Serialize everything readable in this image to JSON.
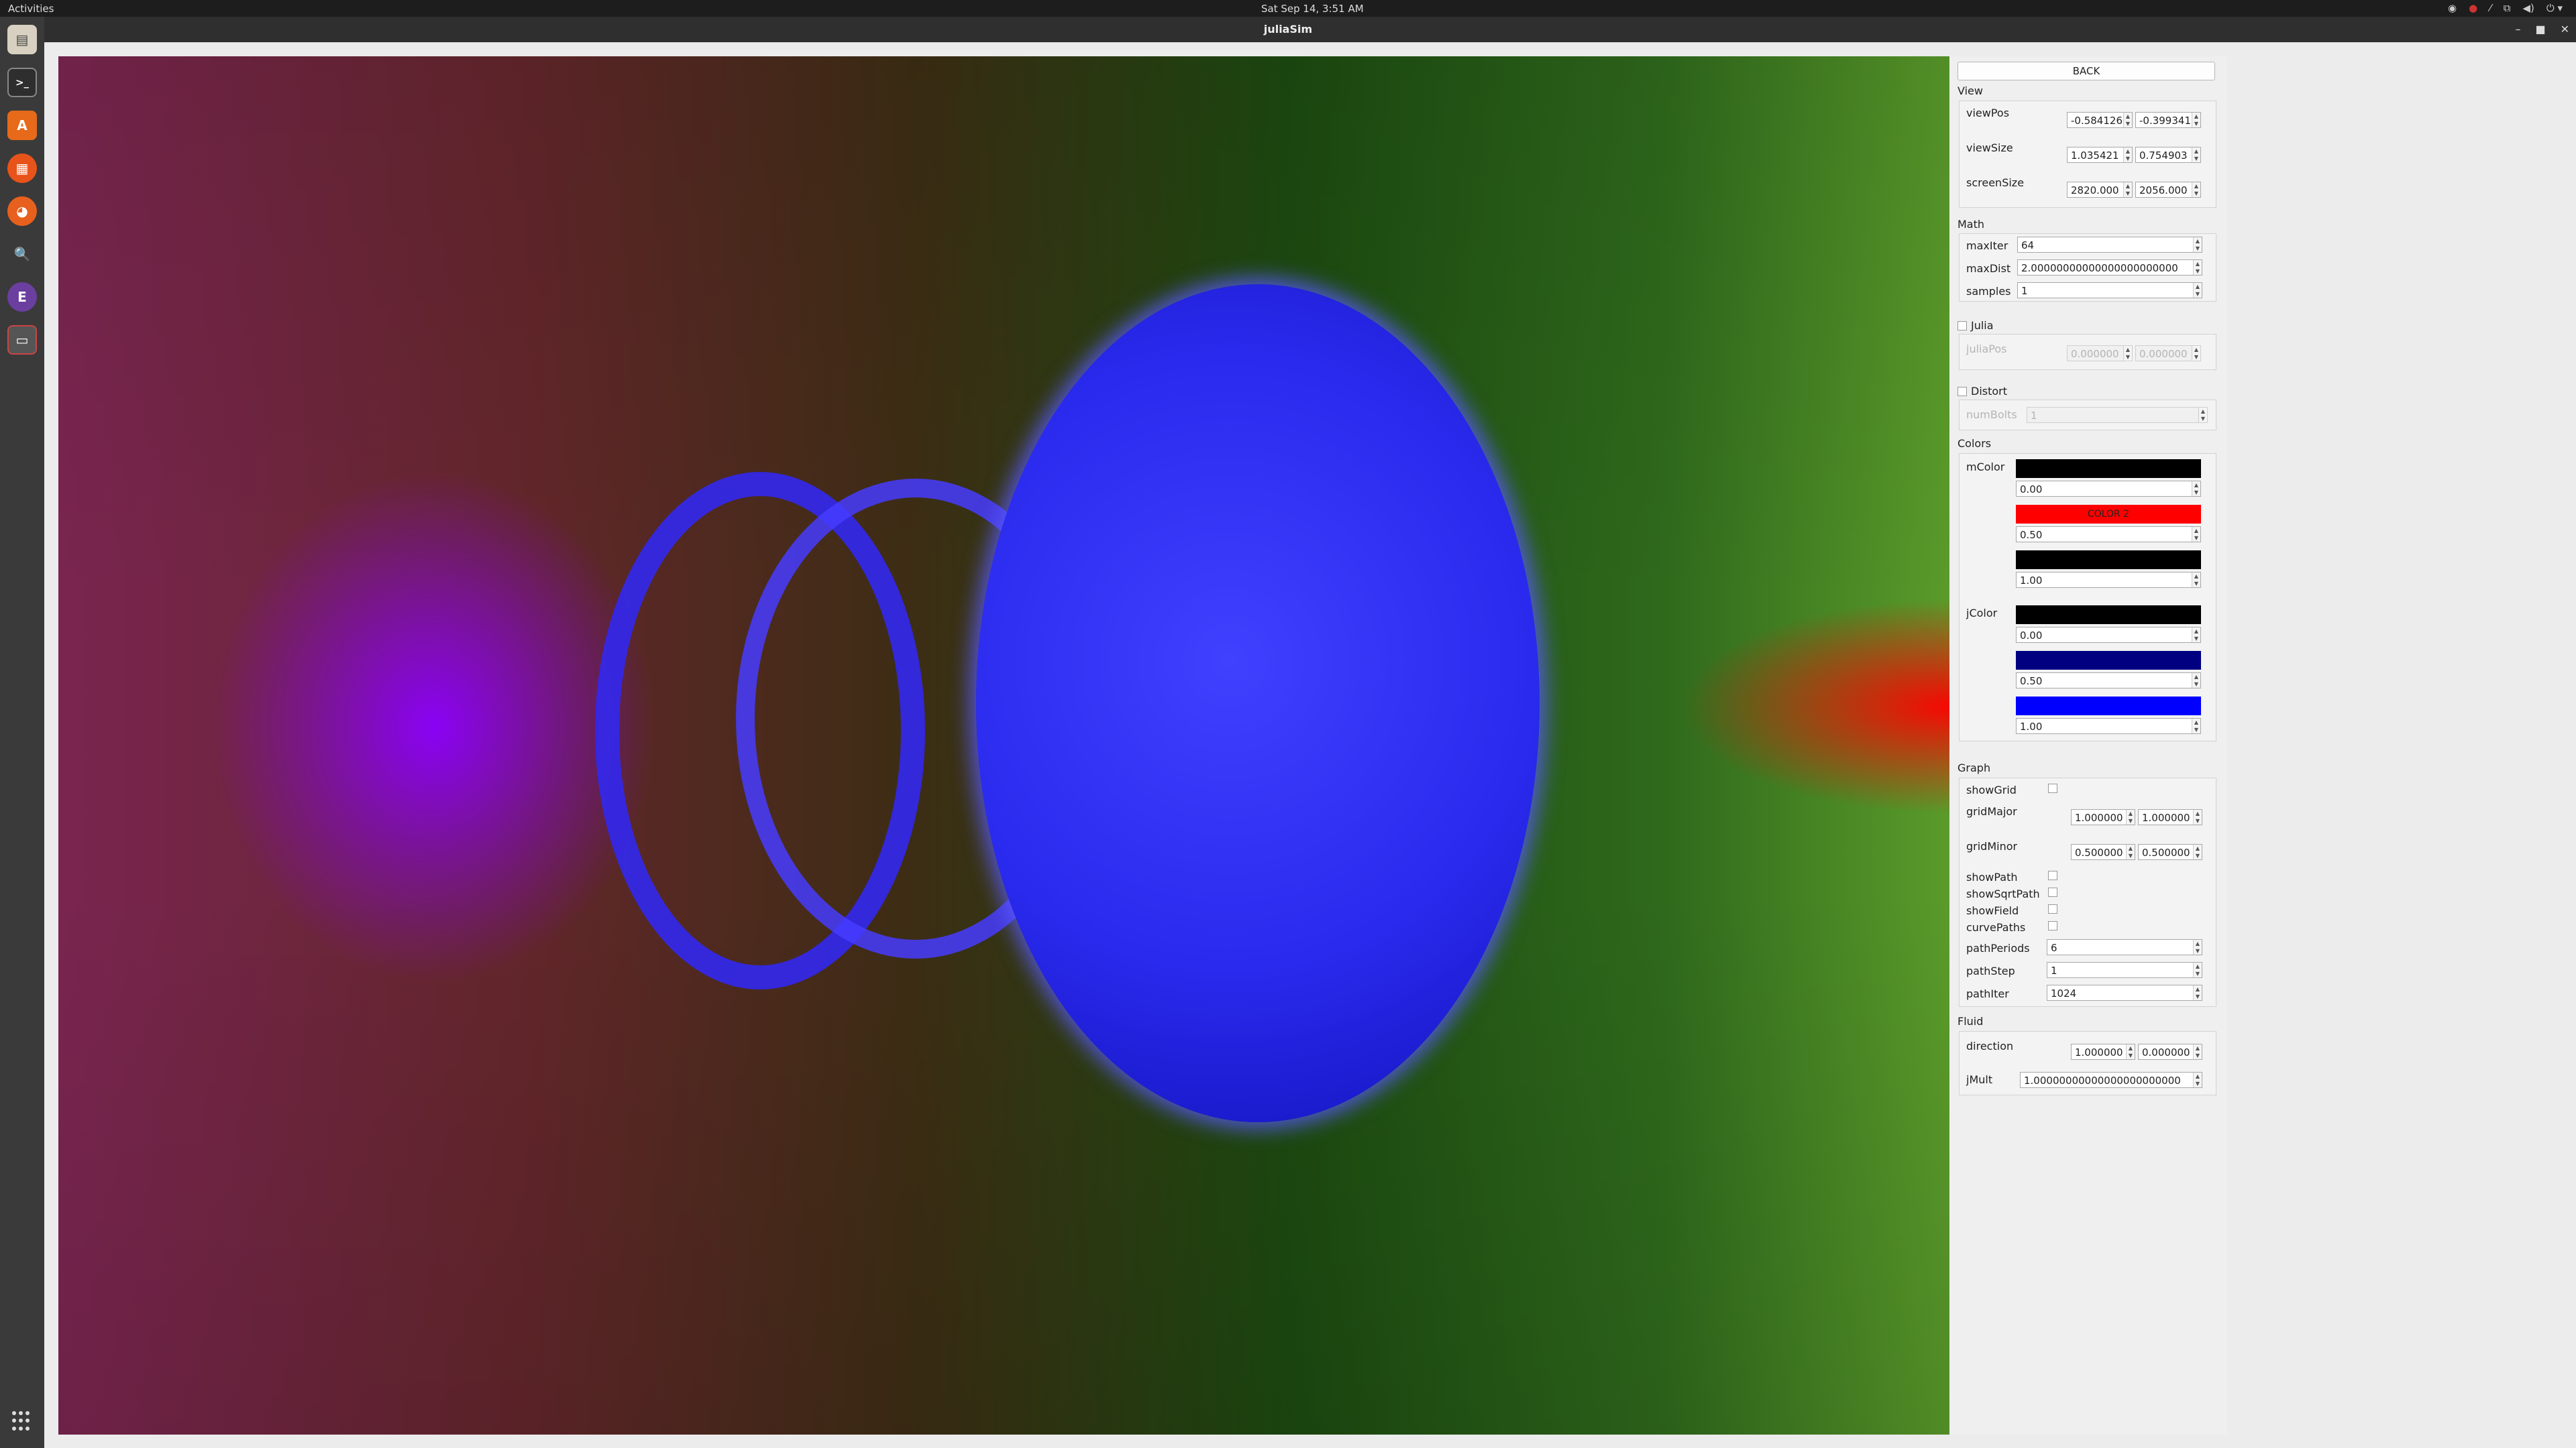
{
  "topbar": {
    "activities": "Activities",
    "clock": "Sat Sep 14,  3:51 AM"
  },
  "window": {
    "title": "juliaSim"
  },
  "dock": {
    "apps": [
      "files-icon",
      "terminal-icon",
      "software-icon",
      "calendar-icon",
      "firefox-icon",
      "search-icon",
      "emacs-icon",
      "juliasim-icon"
    ]
  },
  "panel": {
    "back_label": "BACK",
    "view": {
      "title": "View",
      "viewPos": {
        "label": "viewPos",
        "x": "-0.584126",
        "y": "-0.399341"
      },
      "viewSize": {
        "label": "viewSize",
        "x": "1.035421",
        "y": "0.754903"
      },
      "screenSize": {
        "label": "screenSize",
        "x": "2820.000",
        "y": "2056.000"
      }
    },
    "math": {
      "title": "Math",
      "maxIter": {
        "label": "maxIter",
        "value": "64"
      },
      "maxDist": {
        "label": "maxDist",
        "value": "2.00000000000000000000000"
      },
      "samples": {
        "label": "samples",
        "value": "1"
      }
    },
    "julia": {
      "label": "Julia",
      "checked": false,
      "juliaPos": {
        "label": "juliaPos",
        "x": "0.000000",
        "y": "0.000000"
      }
    },
    "distort": {
      "label": "Distort",
      "checked": false,
      "numBolts": {
        "label": "numBolts",
        "value": "1"
      }
    },
    "colors": {
      "title": "Colors",
      "mColor": {
        "label": "mColor",
        "stops": [
          {
            "color": "#000000",
            "label": "",
            "value": "0.00"
          },
          {
            "color": "#ff0000",
            "label": "COLOR 2",
            "value": "0.50"
          },
          {
            "color": "#000000",
            "label": "",
            "value": "1.00"
          }
        ]
      },
      "jColor": {
        "label": "jColor",
        "stops": [
          {
            "color": "#000000",
            "label": "",
            "value": "0.00"
          },
          {
            "color": "#000080",
            "label": "",
            "value": "0.50"
          },
          {
            "color": "#0000ff",
            "label": "",
            "value": "1.00"
          }
        ]
      }
    },
    "graph": {
      "title": "Graph",
      "showGrid": {
        "label": "showGrid",
        "checked": false
      },
      "gridMajor": {
        "label": "gridMajor",
        "x": "1.000000",
        "y": "1.000000"
      },
      "gridMinor": {
        "label": "gridMinor",
        "x": "0.500000",
        "y": "0.500000"
      },
      "showPath": {
        "label": "showPath",
        "checked": false
      },
      "showSqrtPath": {
        "label": "showSqrtPath",
        "checked": false
      },
      "showField": {
        "label": "showField",
        "checked": false
      },
      "curvePaths": {
        "label": "curvePaths",
        "checked": false
      },
      "pathPeriods": {
        "label": "pathPeriods",
        "value": "6"
      },
      "pathStep": {
        "label": "pathStep",
        "value": "1"
      },
      "pathIter": {
        "label": "pathIter",
        "value": "1024"
      }
    },
    "fluid": {
      "title": "Fluid",
      "direction": {
        "label": "direction",
        "x": "1.000000",
        "y": "0.000000"
      },
      "jMult": {
        "label": "jMult",
        "value": "1.00000000000000000000000"
      }
    }
  }
}
